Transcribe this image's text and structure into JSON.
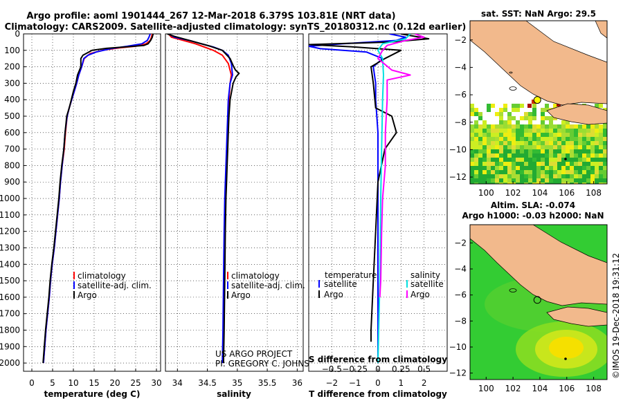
{
  "header": {
    "line1": "Argo profile: aoml 1901444_267 12-Mar-2018 6.379S 103.81E (NRT data)",
    "line2": "Climatology: CARS2009. Satellite-adjusted climatology: synTS_20180312.nc (0.12d earlier)"
  },
  "colors": {
    "climatology": "#ff0000",
    "satellite": "#0000ff",
    "argo": "#000000",
    "sal_satellite": "#00e0e0",
    "sal_argo": "#ff00ff",
    "land": "#f2b98c",
    "sla_background": "#33cc33"
  },
  "credits": {
    "project": "US ARGO PROJECT",
    "pi": "PI: GREGORY C. JOHNSON",
    "imos": "©IMOS 19-Dec-2018 19:31:12"
  },
  "chart_data": [
    {
      "id": "temperature",
      "type": "line",
      "xlabel": "temperature (deg C)",
      "ylabel": "",
      "xlim": [
        -2,
        31
      ],
      "ylim": [
        2050,
        0
      ],
      "xticks": [
        0,
        5,
        10,
        15,
        20,
        25,
        30
      ],
      "yticks": [
        0,
        100,
        200,
        300,
        400,
        500,
        600,
        700,
        800,
        900,
        1000,
        1100,
        1200,
        1300,
        1400,
        1500,
        1600,
        1700,
        1800,
        1900,
        2000
      ],
      "grid": true,
      "legend": [
        "climatology",
        "satellite-adj. clim.",
        "Argo"
      ],
      "legend_position": "bottom-right",
      "series": [
        {
          "name": "climatology",
          "color": "#ff0000",
          "points": [
            [
              29.0,
              0
            ],
            [
              28.8,
              20
            ],
            [
              28.5,
              40
            ],
            [
              27.5,
              60
            ],
            [
              25.0,
              75
            ],
            [
              21.0,
              85
            ],
            [
              17.0,
              100
            ],
            [
              14.0,
              120
            ],
            [
              12.6,
              150
            ],
            [
              12.0,
              200
            ],
            [
              11.3,
              250
            ],
            [
              10.8,
              300
            ],
            [
              10.2,
              350
            ],
            [
              9.6,
              400
            ],
            [
              9.0,
              450
            ],
            [
              8.5,
              500
            ],
            [
              8.1,
              600
            ],
            [
              7.8,
              700
            ],
            [
              7.3,
              800
            ],
            [
              6.9,
              900
            ],
            [
              6.6,
              1000
            ],
            [
              6.2,
              1100
            ],
            [
              5.8,
              1200
            ],
            [
              5.4,
              1300
            ],
            [
              4.9,
              1400
            ],
            [
              4.5,
              1500
            ],
            [
              4.2,
              1600
            ],
            [
              3.8,
              1700
            ],
            [
              3.4,
              1800
            ],
            [
              3.1,
              1900
            ],
            [
              2.8,
              2000
            ]
          ]
        },
        {
          "name": "satellite-adj. clim.",
          "color": "#0000ff",
          "points": [
            [
              28.5,
              0
            ],
            [
              28.2,
              20
            ],
            [
              27.8,
              40
            ],
            [
              26.5,
              60
            ],
            [
              23.0,
              75
            ],
            [
              19.0,
              90
            ],
            [
              15.5,
              110
            ],
            [
              13.5,
              130
            ],
            [
              12.5,
              150
            ],
            [
              12.0,
              200
            ],
            [
              11.3,
              250
            ],
            [
              10.8,
              300
            ],
            [
              10.2,
              350
            ],
            [
              9.6,
              400
            ],
            [
              9.0,
              450
            ],
            [
              8.5,
              500
            ],
            [
              8.0,
              600
            ],
            [
              7.7,
              700
            ],
            [
              7.3,
              800
            ],
            [
              6.9,
              900
            ],
            [
              6.6,
              1000
            ],
            [
              6.2,
              1100
            ],
            [
              5.8,
              1200
            ],
            [
              5.4,
              1300
            ],
            [
              4.9,
              1400
            ],
            [
              4.5,
              1500
            ],
            [
              4.2,
              1600
            ],
            [
              3.8,
              1700
            ],
            [
              3.4,
              1800
            ],
            [
              3.1,
              1900
            ],
            [
              2.8,
              2000
            ]
          ]
        },
        {
          "name": "Argo",
          "color": "#000000",
          "points": [
            [
              29.2,
              0
            ],
            [
              29.0,
              20
            ],
            [
              28.6,
              40
            ],
            [
              28.0,
              60
            ],
            [
              27.0,
              70
            ],
            [
              23.0,
              78
            ],
            [
              18.0,
              88
            ],
            [
              14.5,
              100
            ],
            [
              12.3,
              130
            ],
            [
              11.8,
              150
            ],
            [
              11.8,
              200
            ],
            [
              11.0,
              250
            ],
            [
              10.6,
              300
            ],
            [
              10.0,
              350
            ],
            [
              9.5,
              400
            ],
            [
              9.0,
              450
            ],
            [
              8.4,
              500
            ],
            [
              8.0,
              600
            ],
            [
              7.7,
              700
            ],
            [
              7.2,
              800
            ],
            [
              6.8,
              900
            ],
            [
              6.5,
              1000
            ],
            [
              6.1,
              1100
            ],
            [
              5.7,
              1200
            ],
            [
              5.3,
              1300
            ],
            [
              4.8,
              1400
            ],
            [
              4.4,
              1500
            ],
            [
              4.1,
              1600
            ],
            [
              3.7,
              1700
            ],
            [
              3.3,
              1800
            ],
            [
              3.0,
              1900
            ],
            [
              2.7,
              2000
            ]
          ]
        }
      ]
    },
    {
      "id": "salinity",
      "type": "line",
      "xlabel": "salinity",
      "ylabel": "",
      "xlim": [
        33.8,
        36.1
      ],
      "ylim": [
        2050,
        0
      ],
      "xticks": [
        34,
        34.5,
        35,
        35.5,
        36
      ],
      "yticks": [],
      "grid": true,
      "legend": [
        "climatology",
        "satellite-adj. clim.",
        "Argo"
      ],
      "legend_position": "bottom-right",
      "series": [
        {
          "name": "climatology",
          "color": "#ff0000",
          "points": [
            [
              33.85,
              0
            ],
            [
              33.9,
              20
            ],
            [
              34.1,
              40
            ],
            [
              34.3,
              60
            ],
            [
              34.45,
              80
            ],
            [
              34.6,
              100
            ],
            [
              34.75,
              130
            ],
            [
              34.85,
              180
            ],
            [
              34.9,
              250
            ],
            [
              34.88,
              300
            ],
            [
              34.86,
              400
            ],
            [
              34.84,
              600
            ],
            [
              34.82,
              800
            ],
            [
              34.8,
              1000
            ],
            [
              34.79,
              1200
            ],
            [
              34.78,
              1500
            ],
            [
              34.77,
              1800
            ],
            [
              34.76,
              2000
            ]
          ]
        },
        {
          "name": "satellite-adj. clim.",
          "color": "#0000ff",
          "points": [
            [
              33.85,
              0
            ],
            [
              33.95,
              20
            ],
            [
              34.2,
              40
            ],
            [
              34.4,
              60
            ],
            [
              34.6,
              80
            ],
            [
              34.75,
              100
            ],
            [
              34.85,
              130
            ],
            [
              34.9,
              180
            ],
            [
              34.92,
              250
            ],
            [
              34.88,
              300
            ],
            [
              34.85,
              400
            ],
            [
              34.83,
              600
            ],
            [
              34.81,
              800
            ],
            [
              34.79,
              1000
            ],
            [
              34.78,
              1200
            ],
            [
              34.77,
              1500
            ],
            [
              34.76,
              1800
            ],
            [
              34.75,
              2000
            ]
          ]
        },
        {
          "name": "Argo",
          "color": "#000000",
          "points": [
            [
              33.83,
              0
            ],
            [
              33.95,
              15
            ],
            [
              34.15,
              35
            ],
            [
              34.35,
              55
            ],
            [
              34.55,
              75
            ],
            [
              34.75,
              100
            ],
            [
              34.88,
              150
            ],
            [
              34.94,
              200
            ],
            [
              34.97,
              220
            ],
            [
              35.03,
              240
            ],
            [
              34.98,
              260
            ],
            [
              34.93,
              300
            ],
            [
              34.88,
              400
            ],
            [
              34.86,
              500
            ],
            [
              34.85,
              600
            ],
            [
              34.84,
              700
            ],
            [
              34.83,
              800
            ],
            [
              34.82,
              900
            ],
            [
              34.81,
              1000
            ],
            [
              34.8,
              1200
            ],
            [
              34.79,
              1500
            ],
            [
              34.78,
              1800
            ],
            [
              34.77,
              2000
            ]
          ]
        }
      ]
    },
    {
      "id": "differences",
      "type": "line",
      "xlabel": "T difference from climatology",
      "xlabel_top": "S difference from climatology",
      "ylabel": "",
      "xlim": [
        -3,
        3
      ],
      "ylim": [
        2050,
        0
      ],
      "xticks": [
        -2,
        -1,
        0,
        1,
        2
      ],
      "xticks_secondary": [
        -0.5,
        -0.25,
        0,
        0.25,
        0.5
      ],
      "yticks": [],
      "grid": true,
      "legend": [
        "temperature",
        "satellite",
        "Argo",
        "salinity",
        "satellite",
        "Argo"
      ],
      "legend_position": "bottom",
      "series": [
        {
          "name": "temperature satellite",
          "color": "#0000ff",
          "points": [
            [
              0.5,
              0
            ],
            [
              1.2,
              20
            ],
            [
              0.8,
              40
            ],
            [
              -1.5,
              60
            ],
            [
              -3.0,
              75
            ],
            [
              -2.5,
              90
            ],
            [
              -0.5,
              110
            ],
            [
              0.2,
              150
            ],
            [
              -0.2,
              200
            ],
            [
              -0.1,
              300
            ],
            [
              -0.1,
              400
            ],
            [
              0.0,
              600
            ],
            [
              0.0,
              1000
            ],
            [
              0.0,
              1500
            ],
            [
              0.0,
              2000
            ]
          ]
        },
        {
          "name": "temperature Argo",
          "color": "#000000",
          "points": [
            [
              1.0,
              0
            ],
            [
              2.2,
              30
            ],
            [
              0.5,
              50
            ],
            [
              -3.0,
              65
            ],
            [
              -1.0,
              80
            ],
            [
              1.0,
              100
            ],
            [
              0.3,
              150
            ],
            [
              -0.3,
              200
            ],
            [
              -0.2,
              300
            ],
            [
              -0.1,
              450
            ],
            [
              0.6,
              500
            ],
            [
              0.8,
              600
            ],
            [
              0.3,
              700
            ],
            [
              0.0,
              900
            ],
            [
              -0.1,
              1200
            ],
            [
              -0.2,
              1500
            ],
            [
              -0.3,
              1800
            ],
            [
              -0.3,
              1870
            ]
          ]
        },
        {
          "name": "salinity satellite",
          "color": "#00e0e0",
          "points": [
            [
              0.35,
              0
            ],
            [
              0.3,
              30
            ],
            [
              0.05,
              60
            ],
            [
              0.0,
              100
            ],
            [
              0.05,
              150
            ],
            [
              0.06,
              250
            ],
            [
              0.05,
              400
            ],
            [
              0.04,
              700
            ],
            [
              0.03,
              1000
            ],
            [
              0.02,
              1500
            ],
            [
              0.0,
              2000
            ]
          ]
        },
        {
          "name": "salinity Argo",
          "color": "#ff00ff",
          "points": [
            [
              0.4,
              0
            ],
            [
              0.5,
              20
            ],
            [
              0.3,
              40
            ],
            [
              0.1,
              70
            ],
            [
              0.05,
              100
            ],
            [
              0.0,
              150
            ],
            [
              0.15,
              220
            ],
            [
              0.35,
              250
            ],
            [
              0.1,
              280
            ],
            [
              0.1,
              400
            ],
            [
              0.08,
              600
            ],
            [
              0.08,
              800
            ],
            [
              0.05,
              1000
            ],
            [
              0.04,
              1200
            ],
            [
              0.03,
              1500
            ],
            [
              0.02,
              1600
            ]
          ]
        }
      ]
    }
  ],
  "maps": [
    {
      "id": "sst-map",
      "title": "sat. SST: NaN Argo: 29.5",
      "subtitle": "",
      "xlim": [
        98.8,
        109.0
      ],
      "ylim": [
        -12.5,
        -0.6
      ],
      "xticks": [
        100,
        102,
        104,
        106,
        108
      ],
      "yticks": [
        -2,
        -4,
        -6,
        -8,
        -10,
        -12
      ],
      "float_position": [
        103.81,
        -6.379
      ]
    },
    {
      "id": "sla-map",
      "title": "Altim. SLA: -0.074",
      "subtitle": "Argo h1000: -0.03 h2000: NaN",
      "xlim": [
        98.8,
        109.0
      ],
      "ylim": [
        -12.5,
        -0.6
      ],
      "xticks": [
        100,
        102,
        104,
        106,
        108
      ],
      "yticks": [
        -2,
        -4,
        -6,
        -8,
        -10,
        -12
      ],
      "float_position": [
        103.81,
        -6.379
      ]
    }
  ]
}
